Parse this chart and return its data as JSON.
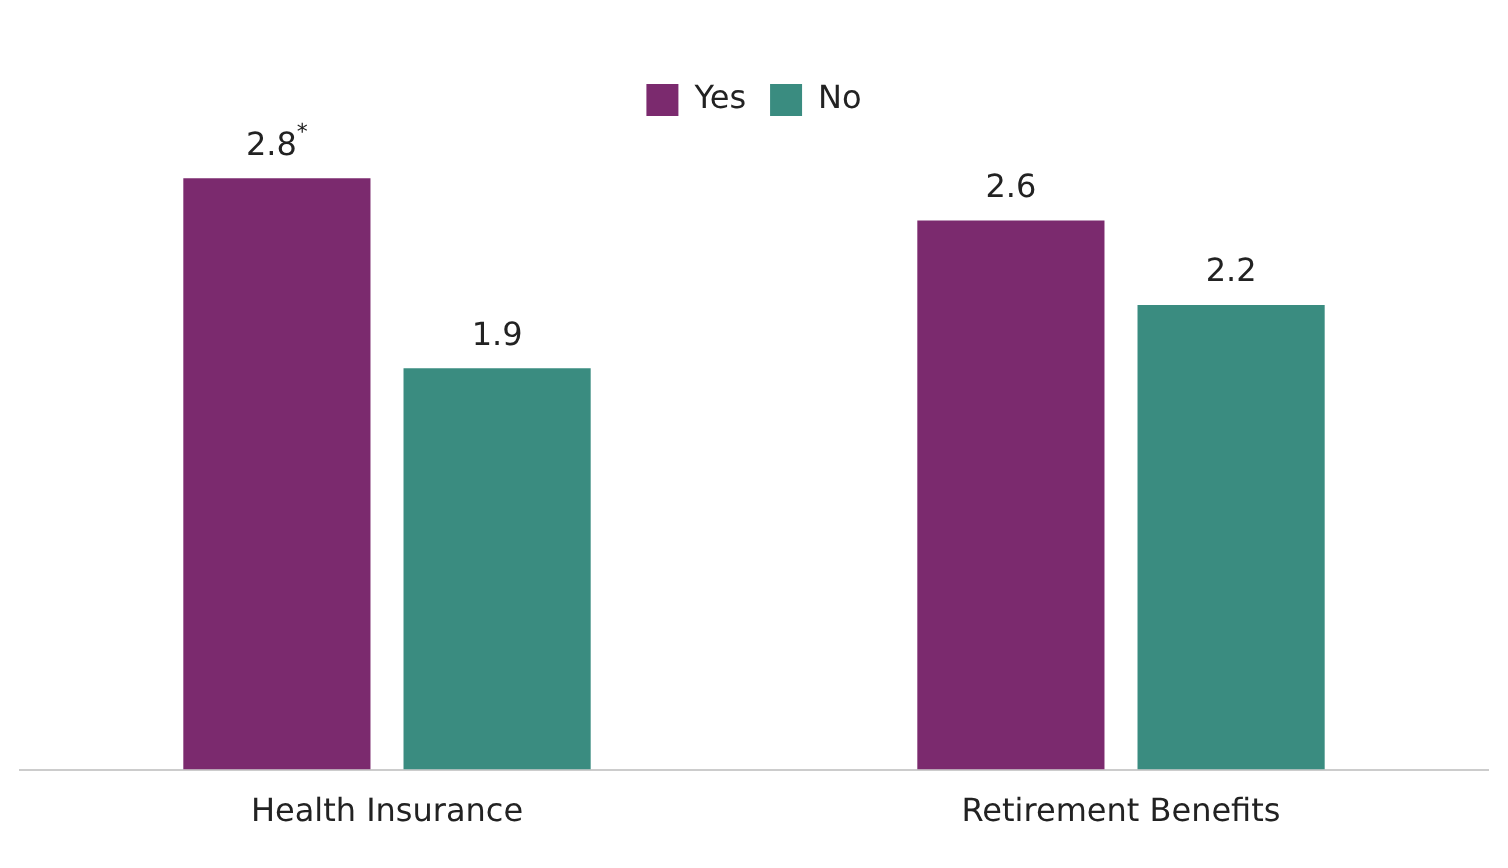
{
  "chart_data": {
    "type": "bar",
    "categories": [
      "Health Insurance",
      "Retirement Benefits"
    ],
    "series": [
      {
        "name": "Yes",
        "color": "#7b2a6e",
        "values": [
          2.8,
          2.6
        ],
        "value_labels": [
          "2.8$^{*}$",
          "2.6"
        ]
      },
      {
        "name": "No",
        "color": "#3a8c80",
        "values": [
          1.9,
          2.2
        ],
        "value_labels": [
          "1.9",
          "2.2"
        ]
      }
    ],
    "legend": "top",
    "grid": false
  }
}
